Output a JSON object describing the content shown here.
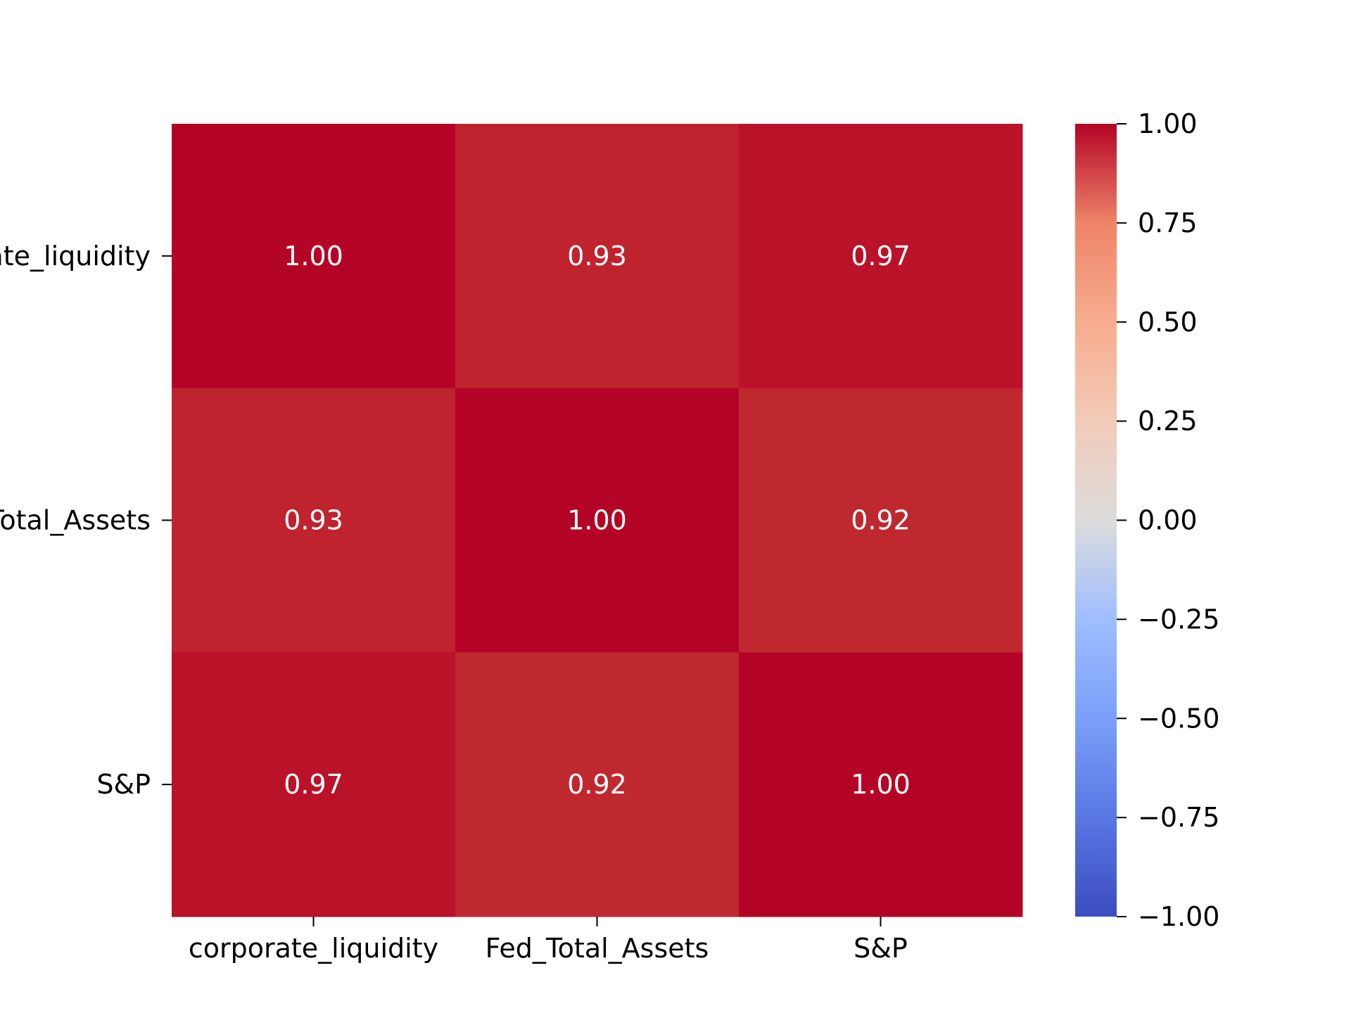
{
  "chart_data": {
    "type": "heatmap",
    "title": "",
    "xlabel": "",
    "ylabel": "",
    "x_labels": [
      "corporate_liquidity",
      "Fed_Total_Assets",
      "S&P"
    ],
    "y_labels": [
      "corporate_liquidity",
      "Fed_Total_Assets",
      "S&P"
    ],
    "matrix": [
      [
        1.0,
        0.93,
        0.97
      ],
      [
        0.93,
        1.0,
        0.92
      ],
      [
        0.97,
        0.92,
        1.0
      ]
    ],
    "annotation_format": "0.00",
    "colormap": "coolwarm",
    "colorbar": {
      "vmin": -1.0,
      "vmax": 1.0,
      "ticks": [
        1.0,
        0.75,
        0.5,
        0.25,
        0.0,
        -0.25,
        -0.5,
        -0.75,
        -1.0
      ],
      "tick_labels": [
        "1.00",
        "0.75",
        "0.50",
        "0.25",
        "0.00",
        "−0.25",
        "−0.50",
        "−0.75",
        "−1.00"
      ]
    },
    "grid": false
  }
}
